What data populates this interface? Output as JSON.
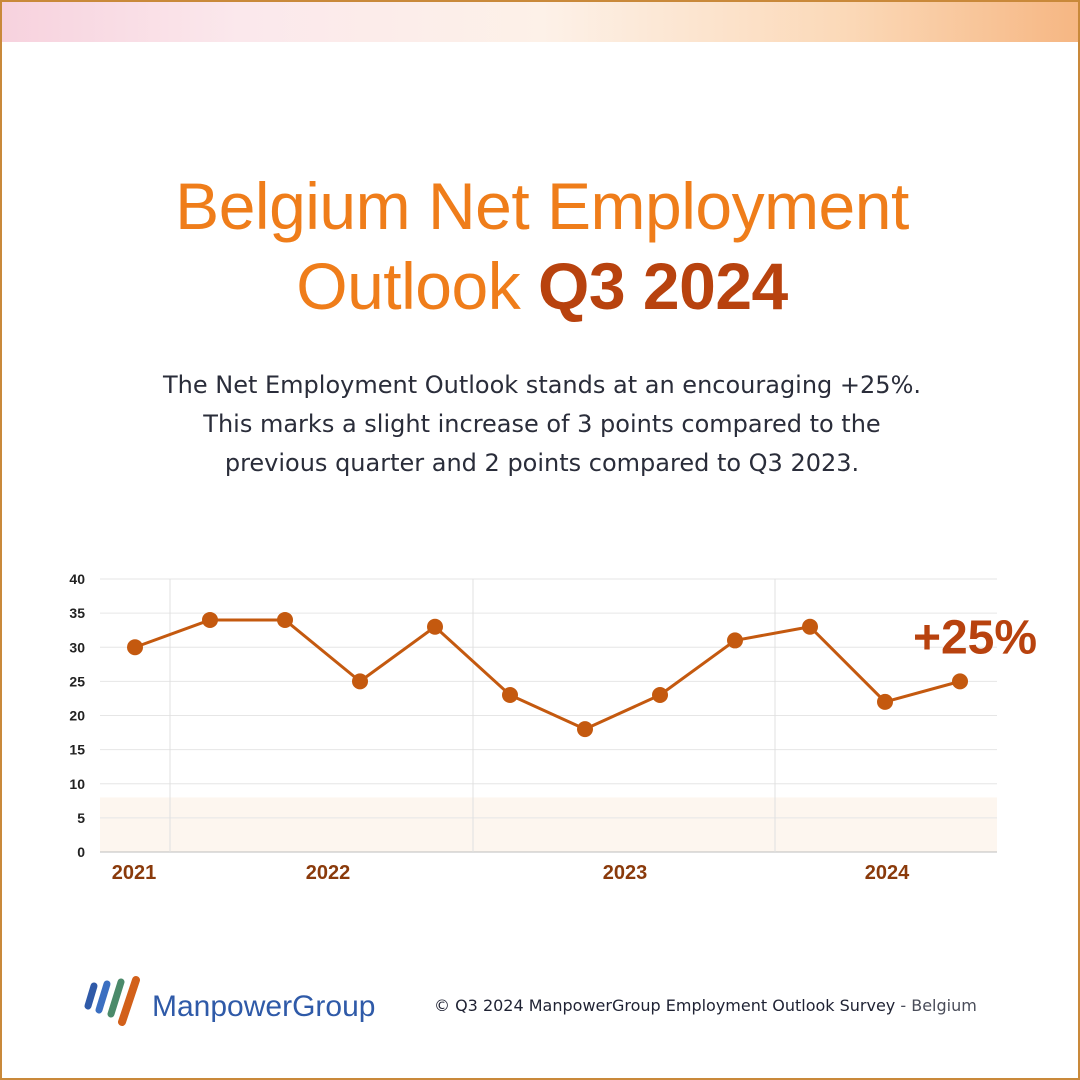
{
  "header": {
    "title_line1": "Belgium Net Employment",
    "title_line2": "Outlook",
    "title_accent": "Q3 2024"
  },
  "lead": {
    "line1": "The Net Employment Outlook stands at an encouraging +25%.",
    "line2": "This marks a slight increase of 3 points compared to the",
    "line3": "previous quarter and 2 points compared to Q3 2023."
  },
  "chart_data": {
    "type": "line",
    "title": "",
    "xlabel": "",
    "ylabel": "",
    "year_labels": [
      "2021",
      "2022",
      "2023",
      "2024"
    ],
    "series": [
      {
        "values": [
          30,
          34,
          34,
          25,
          33,
          23,
          18,
          23,
          31,
          33,
          22,
          25
        ]
      }
    ],
    "ylim": [
      0,
      40
    ],
    "yticks": [
      0,
      5,
      10,
      15,
      20,
      25,
      30,
      35,
      40
    ],
    "grid": true,
    "callout": "+25%",
    "colors": {
      "line": "#c4590f",
      "marker": "#c4590f",
      "year_label": "#8a3a0b",
      "callout": "#b8420e",
      "low_band": "#fdf6ef"
    }
  },
  "footer": {
    "logo_text": "ManpowerGroup",
    "copyright": "© Q3 2024 ManpowerGroup Employment Outlook Survey",
    "suffix": " - Belgium"
  }
}
